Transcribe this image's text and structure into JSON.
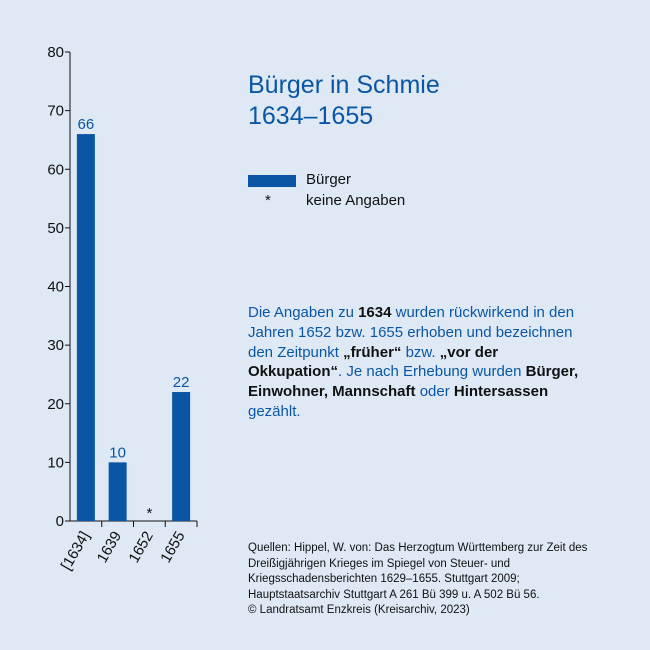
{
  "title": {
    "line1": "Bürger in Schmie",
    "line2": "1634–1655"
  },
  "colors": {
    "bar": "#0a56a4",
    "label": "#0a56a4",
    "title": "#0a56a4",
    "background": "#dfe9f5"
  },
  "legend": {
    "series_label": "Bürger",
    "missing_symbol": "*",
    "missing_label": "keine Angaben"
  },
  "note": {
    "t1": "Die Angaben zu ",
    "b1": "1634",
    "t2": " wurden rückwirkend in den Jahren 1652 bzw. 1655 erhoben und bezeichnen den Zeitpunkt ",
    "b2": "„früher“",
    "t3": " bzw. ",
    "b3": "„vor der Okkupation“",
    "t4": ". Je nach Erhebung wurden ",
    "b4": "Bürger, Einwohner, Mannschaft",
    "t5": " oder ",
    "b5": "Hintersassen",
    "t6": " gezählt."
  },
  "source": {
    "text": "Quellen: Hippel, W. von: Das Herzogtum Württemberg zur Zeit des Dreißigjährigen Krieges im Spiegel von Steuer- und Kriegsschadensberichten 1629–1655. Stuttgart 2009; Hauptstaatsarchiv Stuttgart A 261 Bü 399 u. A 502 Bü 56.",
    "copyright": "© Landratsamt Enzkreis (Kreisarchiv, 2023)"
  },
  "chart_data": {
    "type": "bar",
    "categories": [
      "[1634]",
      "1639",
      "1652",
      "1655"
    ],
    "series": [
      {
        "name": "Bürger",
        "values": [
          66,
          10,
          null,
          22
        ],
        "labels": [
          "66",
          "10",
          "*",
          "22"
        ]
      }
    ],
    "ylim": [
      0,
      80
    ],
    "yticks": [
      0,
      10,
      20,
      30,
      40,
      50,
      60,
      70,
      80
    ],
    "grid": false,
    "legend_position": "right"
  }
}
